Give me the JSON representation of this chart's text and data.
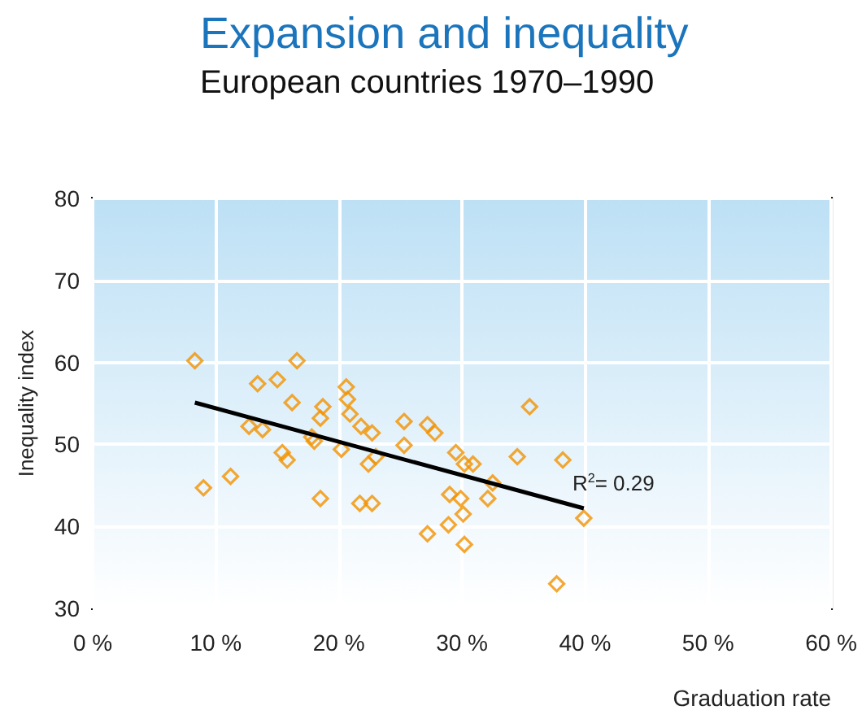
{
  "chart_data": {
    "type": "scatter",
    "title": "Expansion and inequality",
    "subtitle": "European countries 1970–1990",
    "xlabel": "Graduation rate",
    "ylabel": "Inequality index",
    "xlim": [
      0,
      60
    ],
    "xticks": [
      {
        "value": 0,
        "label": "0 %"
      },
      {
        "value": 10,
        "label": "10 %"
      },
      {
        "value": 20,
        "label": "20 %"
      },
      {
        "value": 30,
        "label": "30 %"
      },
      {
        "value": 40,
        "label": "40 %"
      },
      {
        "value": 50,
        "label": "50 %"
      },
      {
        "value": 60,
        "label": "60 %"
      }
    ],
    "ylim": [
      30,
      80
    ],
    "yticks": [
      30,
      40,
      50,
      60,
      70,
      80
    ],
    "grid": true,
    "marker": "diamond",
    "series": [
      {
        "color": "#f39200",
        "x": [
          8.3,
          16.6,
          13.4,
          15.0,
          16.2,
          20.6,
          20.7,
          18.7,
          18.5,
          20.9,
          21.8,
          22.7,
          12.7,
          13.8,
          17.8,
          18.0,
          20.2,
          15.4,
          15.8,
          11.2,
          9.0,
          18.5,
          21.7,
          22.7,
          22.4,
          23.0,
          25.3,
          25.3,
          27.2,
          27.8,
          29.5,
          30.2,
          30.9,
          32.5,
          32.1,
          29.0,
          29.9,
          30.1,
          28.9,
          27.2,
          30.2,
          35.5,
          34.5,
          38.2,
          39.9,
          37.7
        ],
        "values": [
          60.2,
          60.2,
          57.4,
          57.9,
          55.1,
          57.0,
          55.5,
          54.6,
          53.2,
          53.7,
          52.2,
          51.4,
          52.2,
          51.8,
          50.9,
          50.4,
          49.4,
          49.0,
          48.1,
          46.1,
          44.7,
          43.4,
          42.8,
          42.8,
          47.6,
          48.5,
          52.8,
          49.9,
          52.4,
          51.4,
          49.0,
          47.6,
          47.6,
          45.3,
          43.4,
          43.9,
          43.4,
          41.5,
          40.2,
          39.1,
          37.8,
          54.6,
          48.5,
          48.1,
          41.0,
          33.0
        ]
      },
      {
        "type": "line",
        "color": "#000000",
        "marker": "none",
        "x": [
          8.3,
          39.9
        ],
        "values": [
          55.1,
          42.2
        ]
      }
    ],
    "annotations": [
      "R$^{2}$= 0.29"
    ]
  }
}
